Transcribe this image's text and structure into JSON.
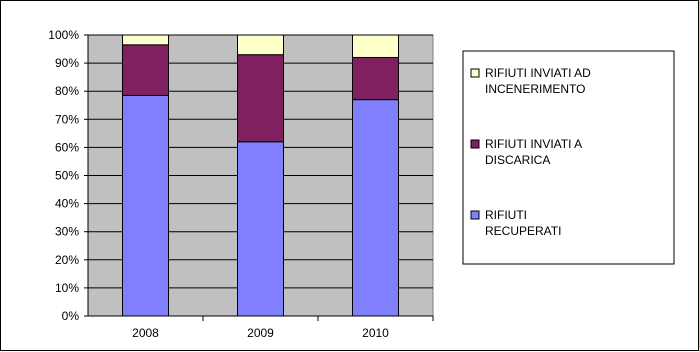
{
  "chart_data": {
    "type": "bar",
    "stacked": true,
    "percent_stacked": true,
    "categories": [
      "2008",
      "2009",
      "2010"
    ],
    "series": [
      {
        "name": "RIFIUTI RECUPERATI",
        "legend_lines": [
          "RIFIUTI",
          "RECUPERATI"
        ],
        "color": "#8080ff",
        "values": [
          78.5,
          62.0,
          77.0
        ]
      },
      {
        "name": "RIFIUTI INVIATI A DISCARICA",
        "legend_lines": [
          "RIFIUTI INVIATI A",
          "DISCARICA"
        ],
        "color": "#802060",
        "values": [
          18.0,
          31.0,
          15.0
        ]
      },
      {
        "name": "RIFIUTI INVIATI AD INCENERIMENTO",
        "legend_lines": [
          "RIFIUTI INVIATI AD",
          "INCENERIMENTO"
        ],
        "color": "#ffffcc",
        "values": [
          3.5,
          7.0,
          8.0
        ]
      }
    ],
    "y_ticks": [
      "0%",
      "10%",
      "20%",
      "30%",
      "40%",
      "50%",
      "60%",
      "70%",
      "80%",
      "90%",
      "100%"
    ],
    "ylim": [
      0,
      100
    ],
    "grid": true,
    "plot_background": "#c0c0c0",
    "legend_position": "right",
    "title": "",
    "xlabel": "",
    "ylabel": ""
  }
}
